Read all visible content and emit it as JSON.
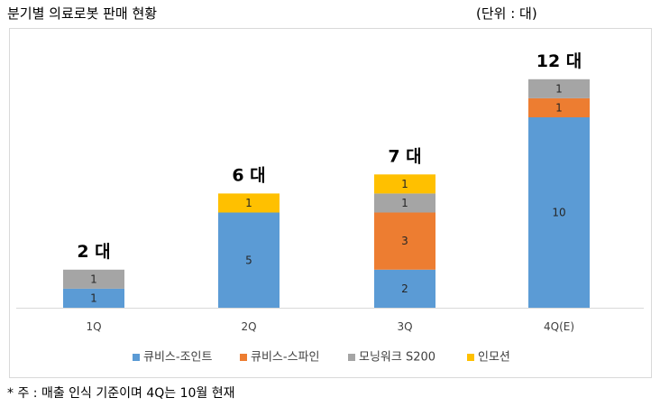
{
  "header": {
    "title": "분기별 의료로봇 판매 현황",
    "unit": "(단위 : 대)"
  },
  "footnote": "* 주 : 매출 인식 기준이며 4Q는 10월 현재",
  "chart_data": {
    "type": "bar",
    "stacked": true,
    "categories": [
      "1Q",
      "2Q",
      "3Q",
      "4Q(E)"
    ],
    "series": [
      {
        "name": "큐비스-조인트",
        "color": "#5b9bd5",
        "values": [
          1,
          5,
          2,
          10
        ]
      },
      {
        "name": "큐비스-스파인",
        "color": "#ed7d31",
        "values": [
          0,
          0,
          3,
          1
        ]
      },
      {
        "name": "모닝워크 S200",
        "color": "#a5a5a5",
        "values": [
          1,
          0,
          1,
          1
        ]
      },
      {
        "name": "인모션",
        "color": "#ffc000",
        "values": [
          0,
          1,
          1,
          0
        ]
      }
    ],
    "totals": [
      "2 대",
      "6 대",
      "7 대",
      "12 대"
    ],
    "ylim": [
      0,
      12
    ],
    "grid": false,
    "legend": "bottom"
  }
}
